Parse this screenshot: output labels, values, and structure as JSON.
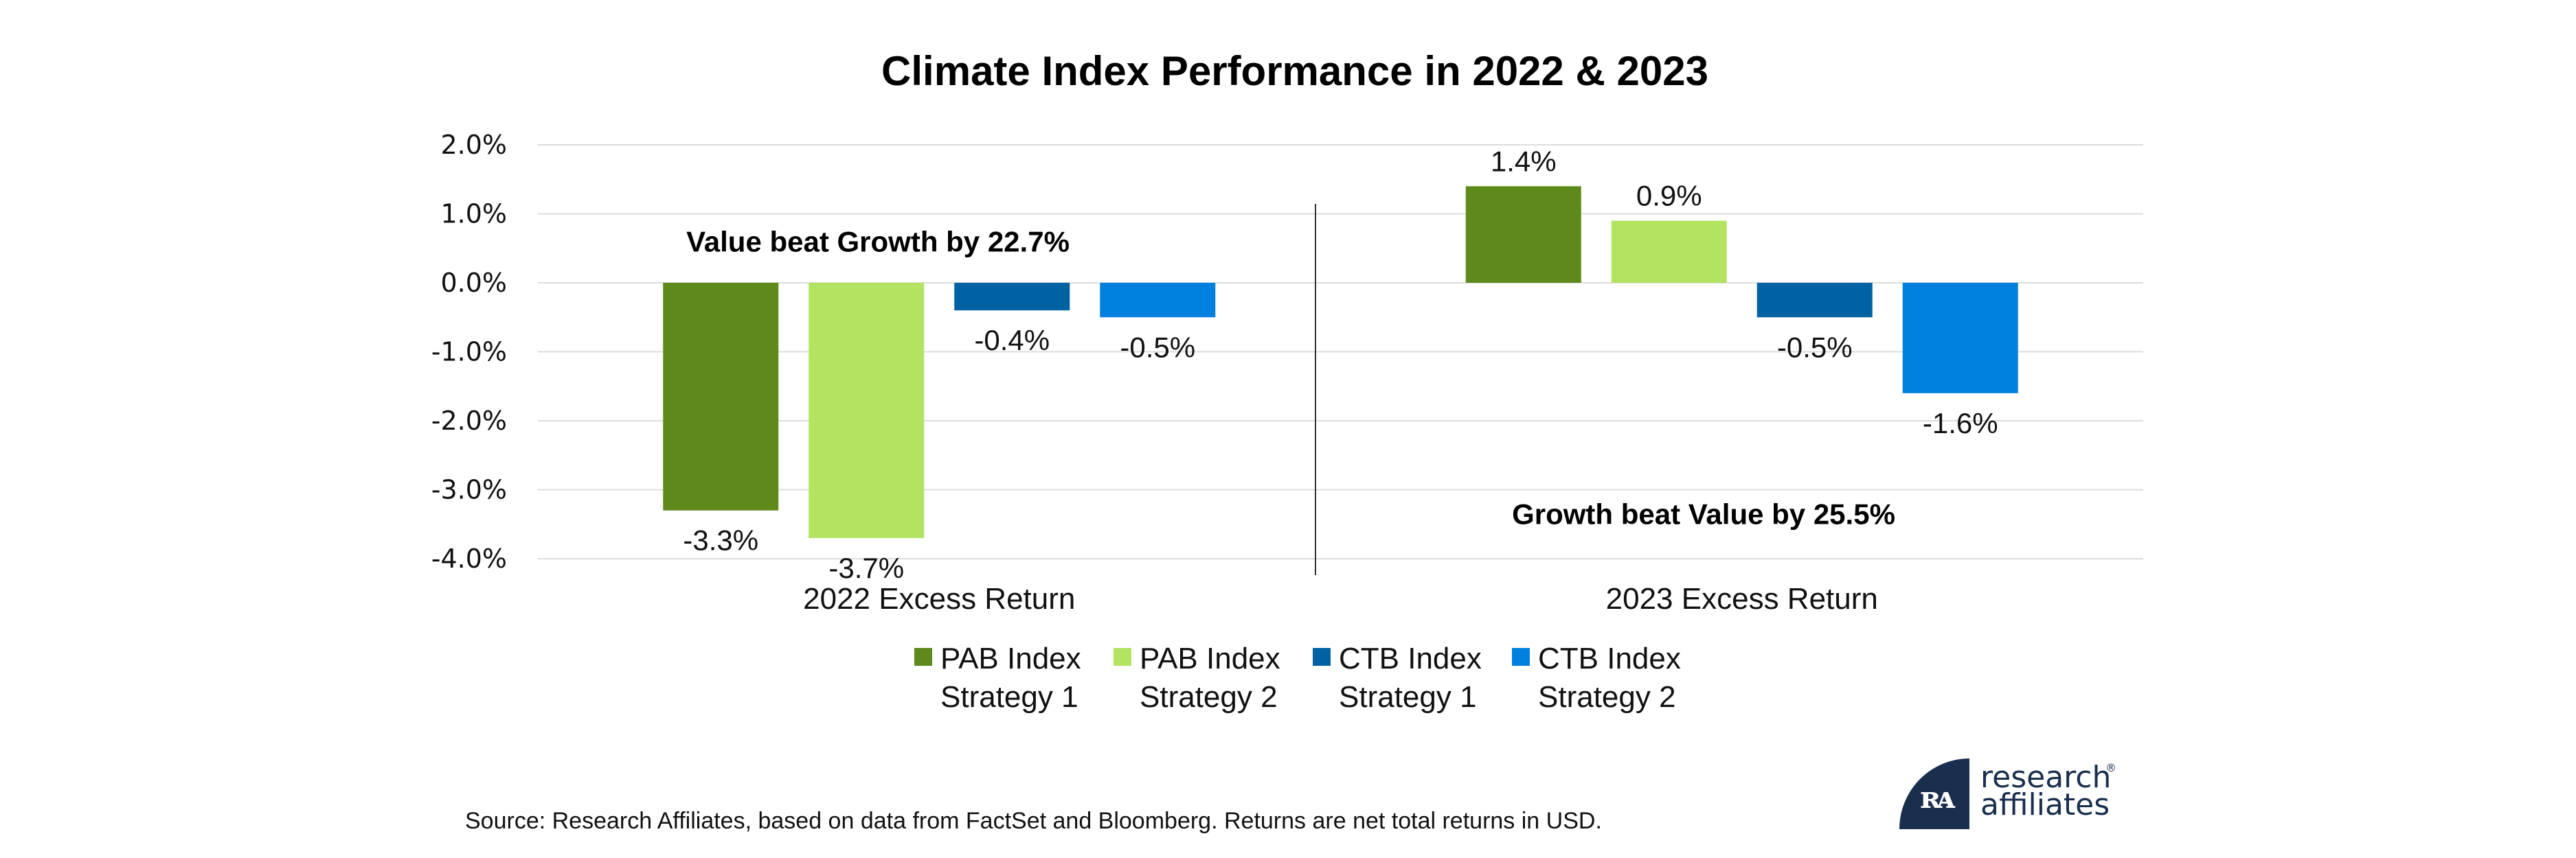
{
  "chart_data": {
    "type": "bar",
    "title": "Climate Index Performance in 2022 & 2023",
    "xlabel": "",
    "ylabel": "",
    "categories": [
      "2022 Excess Return",
      "2023 Excess Return"
    ],
    "series": [
      {
        "name": "PAB Index Strategy 1",
        "legend_lines": [
          "PAB Index",
          "Strategy 1"
        ],
        "color": "#5e8a1c",
        "values": [
          -3.3,
          1.4
        ],
        "labels": [
          "-3.3%",
          "1.4%"
        ]
      },
      {
        "name": "PAB Index Strategy 2",
        "legend_lines": [
          "PAB Index",
          "Strategy 2"
        ],
        "color": "#b2e462",
        "values": [
          -3.7,
          0.9
        ],
        "labels": [
          "-3.7%",
          "0.9%"
        ]
      },
      {
        "name": "CTB Index Strategy 1",
        "legend_lines": [
          "CTB Index",
          "Strategy 1"
        ],
        "color": "#0062a3",
        "values": [
          -0.4,
          -0.5
        ],
        "labels": [
          "-0.4%",
          "-0.5%"
        ]
      },
      {
        "name": "CTB Index Strategy 2",
        "legend_lines": [
          "CTB Index",
          "Strategy 2"
        ],
        "color": "#0080de",
        "values": [
          -0.5,
          -1.6
        ],
        "labels": [
          "-0.5%",
          "-1.6%"
        ]
      }
    ],
    "ylim": [
      -4.0,
      2.0
    ],
    "yticks": [
      2.0,
      1.0,
      0.0,
      -1.0,
      -2.0,
      -3.0,
      -4.0
    ],
    "ytick_labels": [
      "2.0%",
      "1.0%",
      "0.0%",
      "-1.0%",
      "-2.0%",
      "-3.0%",
      "-4.0%"
    ],
    "grid": true,
    "legend_position": "bottom",
    "annotations": [
      {
        "text": "Value beat Growth by 22.7%",
        "category": 0,
        "y": 0.6
      },
      {
        "text": "Growth beat Value by 25.5%",
        "category": 1,
        "y": -3.35
      }
    ]
  },
  "footer": {
    "source": "Source: Research Affiliates, based on data from FactSet and Bloomberg. Returns are net total returns in USD."
  },
  "logo": {
    "line1": "research",
    "line2": "affiliates",
    "mark": "ꭆ",
    "registered": "®"
  }
}
